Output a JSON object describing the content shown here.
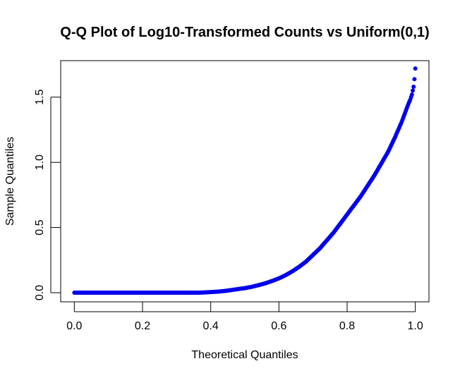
{
  "chart_data": {
    "type": "scatter",
    "title": "Q-Q Plot of Log10-Transformed Counts vs Uniform(0,1)",
    "xlabel": "Theoretical Quantiles",
    "ylabel": "Sample Quantiles",
    "xlim": [
      -0.04,
      1.04
    ],
    "ylim": [
      -0.07,
      1.78
    ],
    "xticks": [
      0.0,
      0.2,
      0.4,
      0.6,
      0.8,
      1.0
    ],
    "xtick_labels": [
      "0.0",
      "0.2",
      "0.4",
      "0.6",
      "0.8",
      "1.0"
    ],
    "yticks": [
      0.0,
      0.5,
      1.0,
      1.5
    ],
    "ytick_labels": [
      "0.0",
      "0.5",
      "1.0",
      "1.5"
    ],
    "grid": false,
    "point_color": "#0000ee",
    "series": [
      {
        "x": [
          0.0,
          0.02,
          0.04,
          0.06,
          0.08,
          0.1,
          0.12,
          0.14,
          0.16,
          0.18,
          0.2,
          0.22,
          0.24,
          0.26,
          0.28,
          0.3,
          0.32,
          0.34,
          0.36,
          0.38,
          0.4,
          0.42,
          0.44,
          0.46,
          0.48,
          0.5,
          0.52,
          0.54,
          0.56,
          0.58,
          0.6,
          0.62,
          0.64,
          0.66,
          0.68,
          0.7,
          0.72,
          0.74,
          0.76,
          0.78,
          0.8,
          0.82,
          0.84,
          0.86,
          0.88,
          0.9,
          0.92,
          0.94,
          0.95,
          0.96,
          0.97,
          0.98,
          0.985,
          0.99,
          0.995,
          0.998,
          1.0
        ],
        "y": [
          0.0,
          0.0,
          0.0,
          0.0,
          0.0,
          0.0,
          0.0,
          0.0,
          0.0,
          0.0,
          0.0,
          0.0,
          0.0,
          0.0,
          0.0,
          0.0,
          0.0,
          0.0,
          0.0,
          0.002,
          0.005,
          0.008,
          0.013,
          0.02,
          0.028,
          0.035,
          0.045,
          0.058,
          0.072,
          0.09,
          0.11,
          0.135,
          0.165,
          0.2,
          0.24,
          0.29,
          0.34,
          0.4,
          0.46,
          0.53,
          0.6,
          0.67,
          0.74,
          0.82,
          0.9,
          0.99,
          1.08,
          1.19,
          1.25,
          1.31,
          1.38,
          1.45,
          1.48,
          1.52,
          1.58,
          1.65,
          1.72
        ]
      }
    ]
  }
}
